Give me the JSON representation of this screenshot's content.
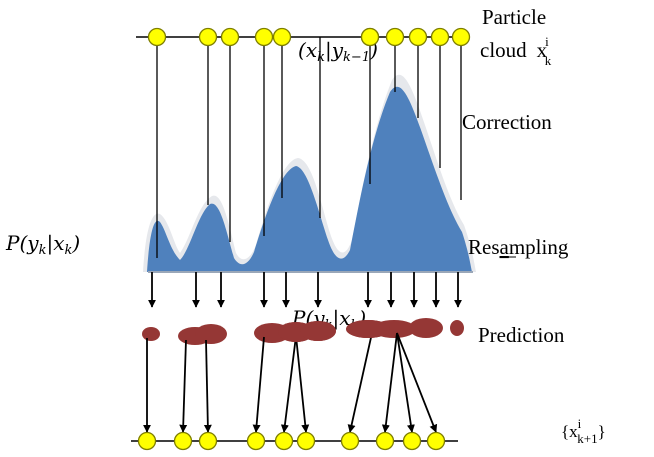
{
  "labels": {
    "particle_line1": "Particle",
    "particle_line2": "cloud",
    "particle_x": "x",
    "particle_sup": "i",
    "particle_sub": "k",
    "correction": "Correction",
    "resampling_pre": "Res",
    "resampling_u": "a",
    "resampling_post": "mpling",
    "prediction": "Prediction",
    "next_open": "{x",
    "next_sup": "i",
    "next_sub": "k+1",
    "next_close": "}"
  },
  "math": {
    "prior_open": "(",
    "prior_x": "x",
    "prior_x_sub": "k",
    "prior_bar": "|",
    "prior_y": "y",
    "prior_y_sub": "k−1",
    "prior_close": ")",
    "lik_p": "P",
    "lik_open": "(",
    "lik_y": "y",
    "lik_y_sub": "k",
    "lik_bar": "|",
    "lik_x": "x",
    "lik_x_sub": "k",
    "lik_close": ")",
    "lik2_p": "P",
    "lik2_open": "(",
    "lik2_y": "y",
    "lik2_y_sub": "k",
    "lik2_bar": "|",
    "lik2_x": "x",
    "lik2_x_sub": "k",
    "lik2_close": ")"
  },
  "colors": {
    "particle_fill": "#ffff00",
    "particle_stroke": "#7f7f00",
    "density_fill": "#4f81bd",
    "density_halo": "#e6e8ec",
    "blob_fill": "#953735",
    "line": "#000000"
  }
}
